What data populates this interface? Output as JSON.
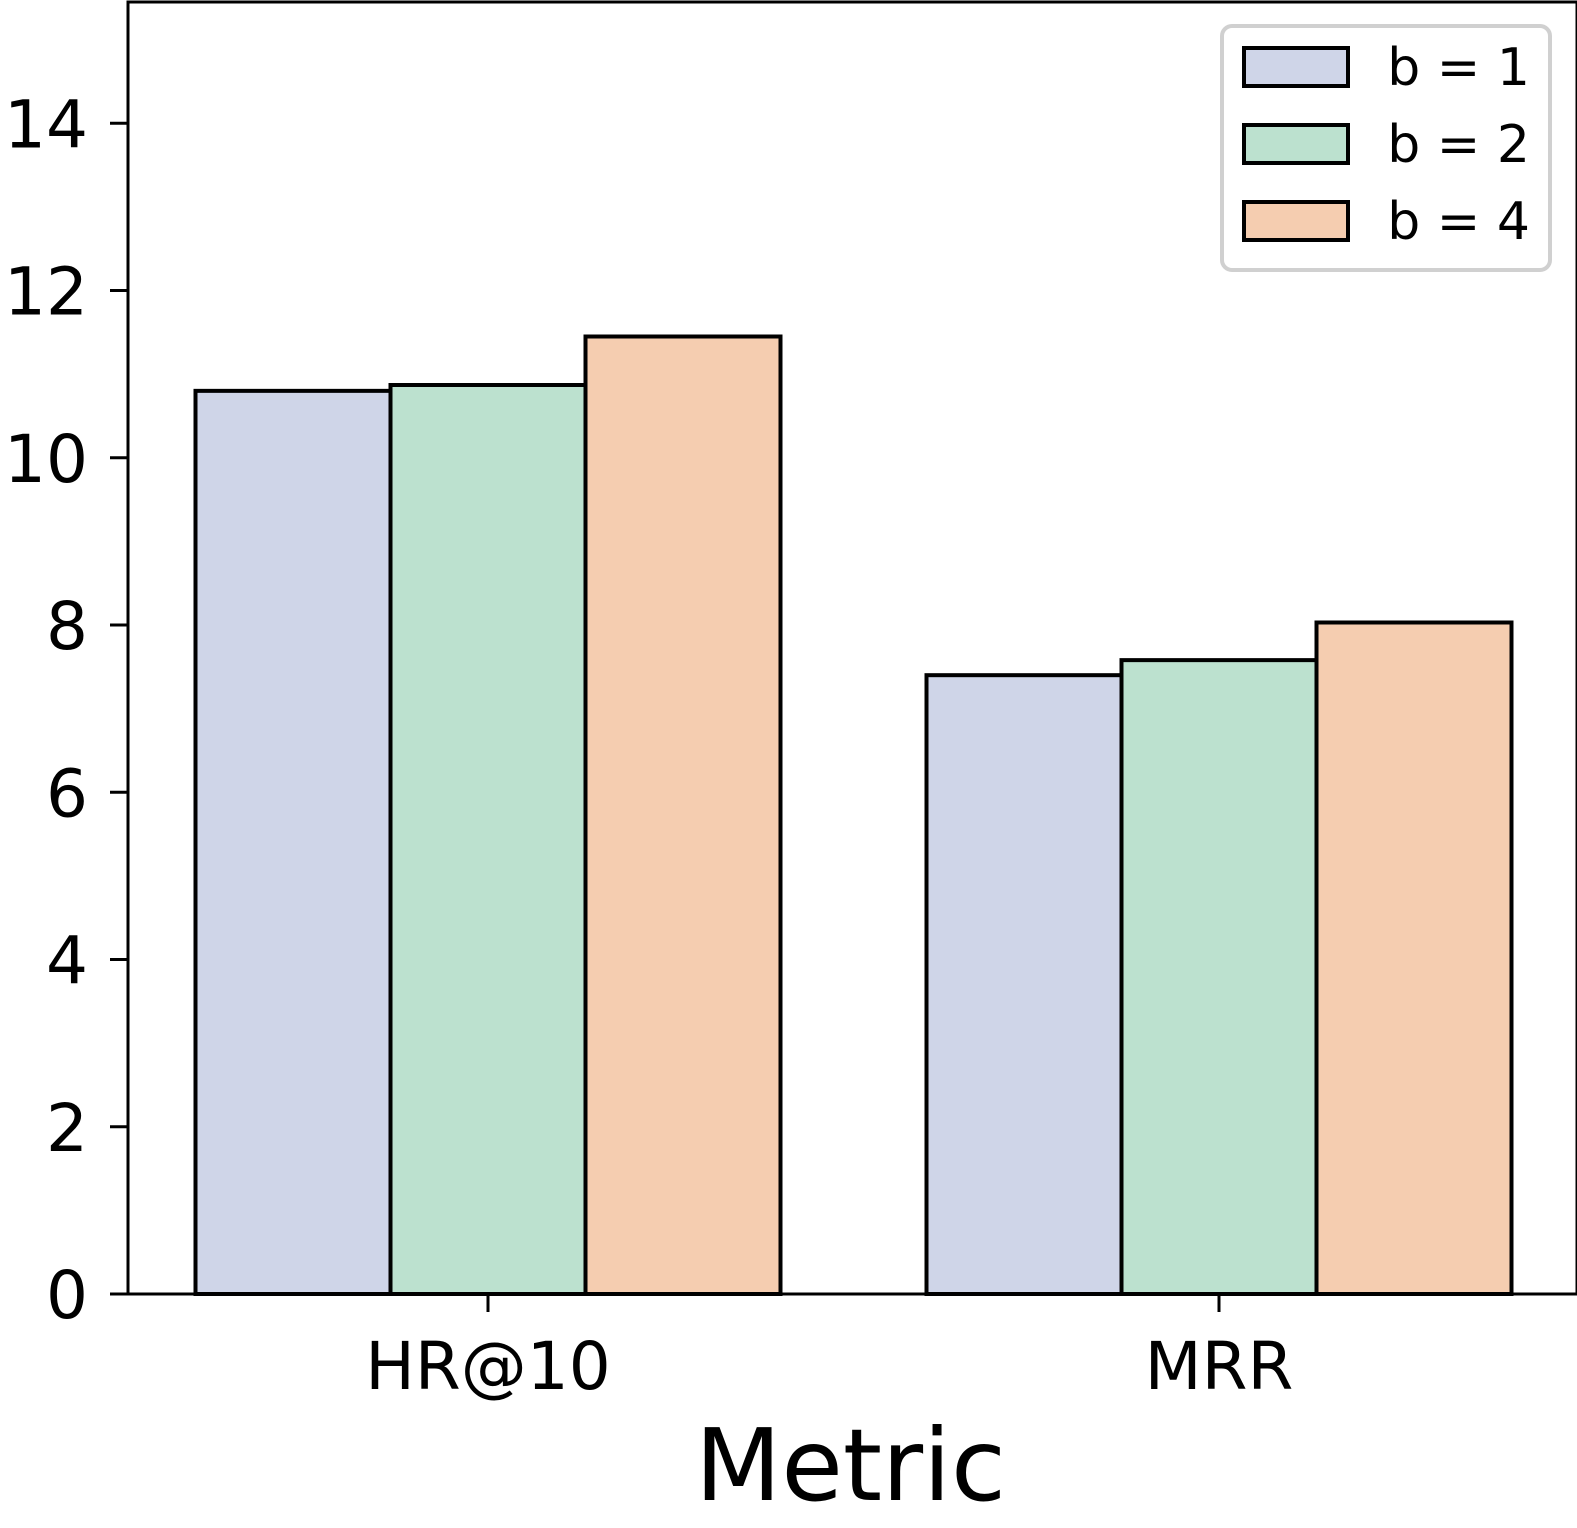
{
  "chart_data": {
    "type": "bar",
    "title": "",
    "xlabel": "Metric",
    "ylabel": "",
    "categories": [
      "HR@10",
      "MRR"
    ],
    "series": [
      {
        "name": "b = 1",
        "values": [
          10.8,
          7.4
        ],
        "color": "#cfd5e8"
      },
      {
        "name": "b = 2",
        "values": [
          10.87,
          7.58
        ],
        "color": "#bce1cf"
      },
      {
        "name": "b = 4",
        "values": [
          11.45,
          8.03
        ],
        "color": "#f5cdb0"
      }
    ],
    "ylim": [
      0,
      15.45
    ],
    "yticks": [
      0,
      2,
      4,
      6,
      8,
      10,
      12,
      14
    ],
    "grid": false,
    "legend_position": "top-right",
    "bar_edge_color": "#000000"
  }
}
